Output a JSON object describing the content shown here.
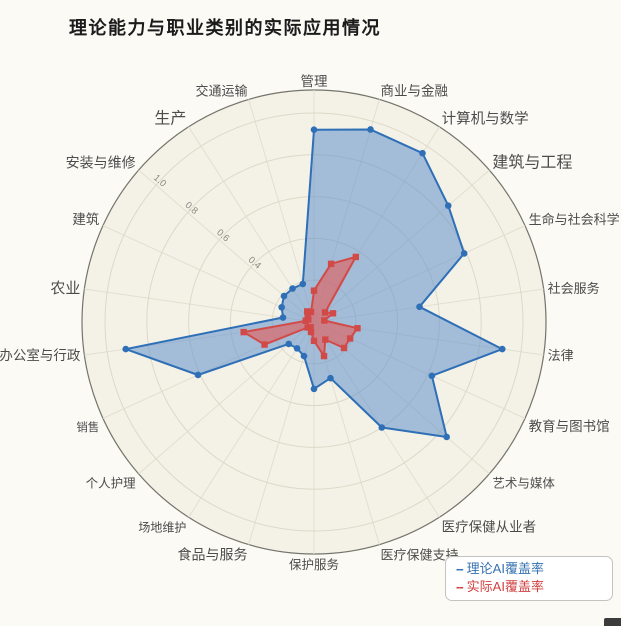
{
  "title": "理论能力与职业类别的实际应用情况",
  "legend": {
    "items": [
      {
        "label": "理论AI覆盖率",
        "dash": "--",
        "color": "#3572b0"
      },
      {
        "label": "实际AI覆盖率",
        "dash": "--",
        "color": "#d23f3f"
      }
    ]
  },
  "chart_data": {
    "type": "radar",
    "title": "理论能力与职业类别的实际应用情况",
    "categories": [
      "管理",
      "商业与金融",
      "计算机与数学",
      "建筑与工程",
      "生命与社会科学",
      "社会服务",
      "法律",
      "教育与图书馆",
      "艺术与媒体",
      "医疗保健从业者",
      "医疗保健支持",
      "保护服务",
      "食品与服务",
      "场地维护",
      "个人护理",
      "销售",
      "办公室与行政",
      "农业",
      "建筑",
      "安装与维修",
      "生产",
      "交通运输"
    ],
    "label_sizes": [
      13.5,
      13.5,
      14.5,
      16,
      13,
      13,
      13,
      13.5,
      12.5,
      13.5,
      13,
      12.5,
      14,
      12,
      12.5,
      11.5,
      13.5,
      15,
      13.5,
      14,
      16,
      13
    ],
    "series": [
      {
        "name": "理论AI覆盖率",
        "line_color": "#2e6fb7",
        "fill_color": "rgba(108,152,205,0.6)",
        "marker": "circle",
        "values": [
          0.92,
          0.96,
          0.96,
          0.85,
          0.79,
          0.51,
          0.91,
          0.62,
          0.84,
          0.6,
          0.28,
          0.32,
          0.17,
          0.15,
          0.16,
          0.61,
          0.91,
          0.15,
          0.17,
          0.19,
          0.19,
          0.19
        ]
      },
      {
        "name": "实际AI覆盖率",
        "line_color": "#d24a48",
        "fill_color": "rgba(230,90,85,0.6)",
        "marker": "square",
        "values": [
          0.15,
          0.29,
          0.37,
          0.07,
          0.1,
          0.05,
          0.21,
          0.19,
          0.19,
          0.1,
          0.17,
          0.09,
          0.05,
          0.03,
          0.04,
          0.26,
          0.34,
          0.04,
          0.03,
          0.04,
          0.06,
          0.05
        ]
      }
    ],
    "rings": [
      0.2,
      0.4,
      0.6,
      0.8,
      1.0
    ],
    "tick_labels": [
      "0.4",
      "0.6",
      "0.8",
      "1.0"
    ],
    "tick_angle_deg": 139.1,
    "range": [
      0,
      1.11
    ],
    "direction": "clockwise",
    "start_angle_deg": 90,
    "grid": true,
    "legend_position": "bottom-right",
    "colors": {
      "plot_bg": "#f4f2e6",
      "outer_ring": "#74746c",
      "grid_line": "#dcd9c9",
      "spoke_line": "#e2dfd1",
      "category_label": "#4c4c4c",
      "tick_label": "#8a8a84"
    }
  }
}
